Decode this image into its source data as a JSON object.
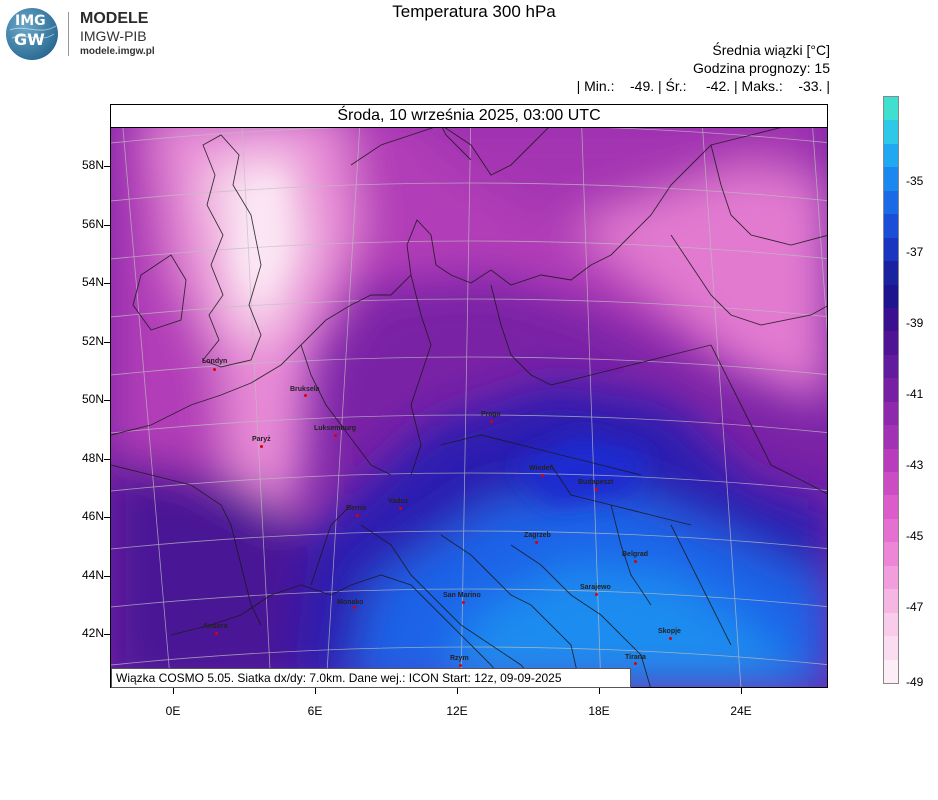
{
  "logo": {
    "mark_top": "IMG",
    "mark_bottom": "GW",
    "line1": "MODELE",
    "line2": "IMGW-PIB",
    "line3": "modele.imgw.pl"
  },
  "title": "Temperatura 300 hPa",
  "header": {
    "line1": "Średnia wiązki [°C]",
    "line2": "Godzina prognozy: 15",
    "line3": "| Min.:    -49. | Śr.:     -42. | Maks.:    -33. |"
  },
  "date_line": "Środa, 10 września 2025, 03:00 UTC",
  "footer": "Wiązka COSMO 5.05. Siatka dx/dy: 7.0km. Dane wej.: ICON Start: 12z, 09-09-2025",
  "lat_labels": [
    "58N",
    "56N",
    "54N",
    "52N",
    "50N",
    "48N",
    "46N",
    "44N",
    "42N"
  ],
  "lon_labels": [
    "0E",
    "6E",
    "12E",
    "18E",
    "24E"
  ],
  "colorbar": {
    "labels": [
      "-35",
      "-37",
      "-39",
      "-41",
      "-43",
      "-45",
      "-47",
      "-49"
    ],
    "colors": [
      "#40e0d0",
      "#30c8e8",
      "#20a8f0",
      "#1a88f0",
      "#1a6ae8",
      "#1a4ed8",
      "#1a36c0",
      "#1a22a0",
      "#1e1490",
      "#3a1090",
      "#4f1496",
      "#621a9e",
      "#7820a4",
      "#8e28ac",
      "#a232b4",
      "#b83cbc",
      "#cc4cc4",
      "#dc5ccc",
      "#e670d2",
      "#ee86d8",
      "#f29ede",
      "#f6b6e4",
      "#f8ccea",
      "#faddf0",
      "#fceef6"
    ]
  },
  "cities": [
    {
      "name": "Londyn"
    },
    {
      "name": "Bruksela"
    },
    {
      "name": "Luksemburg"
    },
    {
      "name": "Paryż"
    },
    {
      "name": "Praga"
    },
    {
      "name": "Wiedeń"
    },
    {
      "name": "Budapeszt"
    },
    {
      "name": "Berno"
    },
    {
      "name": "Vaduz"
    },
    {
      "name": "Zagrzeb"
    },
    {
      "name": "Belgrad"
    },
    {
      "name": "Sarajewo"
    },
    {
      "name": "Monako"
    },
    {
      "name": "San Marino"
    },
    {
      "name": "Andora"
    },
    {
      "name": "Skopje"
    },
    {
      "name": "Tirana"
    },
    {
      "name": "Rzym"
    }
  ]
}
